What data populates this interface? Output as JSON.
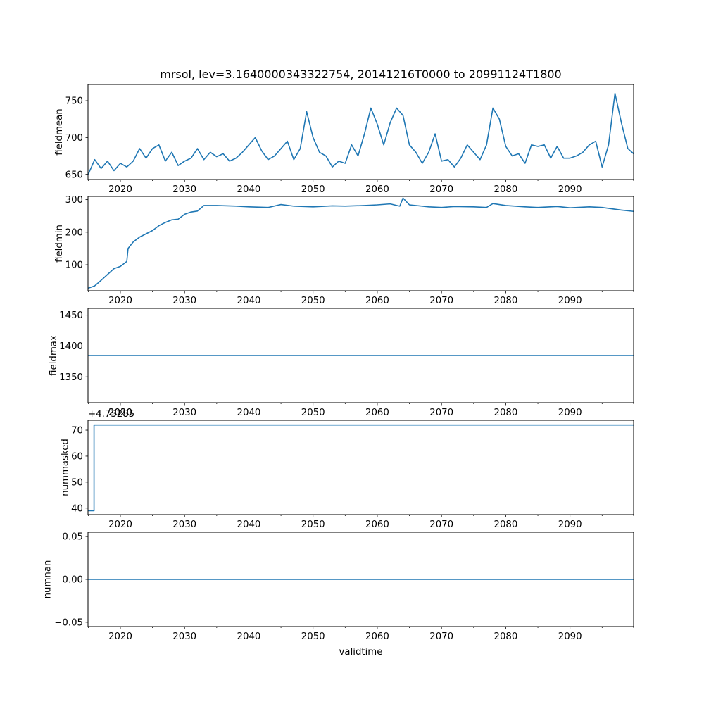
{
  "figure": {
    "title": "mrsol, lev=3.1640000343322754, 20141216T0000 to 20991124T1800",
    "xlabel": "validtime"
  },
  "colors": {
    "line": "#1f77b4",
    "axes": "#000000",
    "background": "#ffffff"
  },
  "chart_data": [
    {
      "type": "line",
      "name": "fieldmean-panel",
      "ylabel": "fieldmean",
      "xlim": [
        2014.96,
        2099.9
      ],
      "ylim": [
        643,
        772
      ],
      "xticks": [
        2020,
        2030,
        2040,
        2050,
        2060,
        2070,
        2080,
        2090
      ],
      "xticklabels": [
        "2020",
        "2030",
        "2040",
        "2050",
        "2060",
        "2070",
        "2080",
        "2090"
      ],
      "yticks": [
        650,
        700,
        750
      ],
      "yticklabels": [
        "650",
        "700",
        "750"
      ],
      "offset_label": "",
      "series": [
        {
          "name": "fieldmean",
          "x": [
            2015.0,
            2016.0,
            2017.0,
            2018.0,
            2019.0,
            2020.0,
            2021.0,
            2022.0,
            2023.0,
            2024.0,
            2025.0,
            2026.0,
            2027.0,
            2028.0,
            2029.0,
            2030.0,
            2031.0,
            2032.0,
            2033.0,
            2034.0,
            2035.0,
            2036.0,
            2037.0,
            2038.0,
            2039.0,
            2040.0,
            2041.0,
            2042.0,
            2043.0,
            2044.0,
            2045.0,
            2046.0,
            2047.0,
            2048.0,
            2049.0,
            2050.0,
            2051.0,
            2052.0,
            2053.0,
            2054.0,
            2055.0,
            2056.0,
            2057.0,
            2058.0,
            2059.0,
            2060.0,
            2061.0,
            2062.0,
            2063.0,
            2064.0,
            2065.0,
            2066.0,
            2067.0,
            2068.0,
            2069.0,
            2070.0,
            2071.0,
            2072.0,
            2073.0,
            2074.0,
            2075.0,
            2076.0,
            2077.0,
            2078.0,
            2079.0,
            2080.0,
            2081.0,
            2082.0,
            2083.0,
            2084.0,
            2085.0,
            2086.0,
            2087.0,
            2088.0,
            2089.0,
            2090.0,
            2091.0,
            2092.0,
            2093.0,
            2094.0,
            2095.0,
            2096.0,
            2097.0,
            2098.0,
            2099.0,
            2099.9
          ],
          "y": [
            650,
            670,
            658,
            668,
            655,
            665,
            660,
            668,
            685,
            672,
            685,
            690,
            668,
            680,
            662,
            668,
            672,
            685,
            670,
            680,
            674,
            678,
            668,
            672,
            680,
            690,
            700,
            682,
            670,
            675,
            685,
            695,
            670,
            685,
            735,
            700,
            680,
            675,
            660,
            668,
            665,
            690,
            675,
            705,
            740,
            718,
            690,
            720,
            740,
            730,
            690,
            680,
            665,
            680,
            705,
            668,
            670,
            660,
            672,
            690,
            680,
            670,
            690,
            740,
            725,
            688,
            675,
            678,
            665,
            690,
            688,
            690,
            672,
            688,
            672,
            672,
            675,
            680,
            690,
            695,
            660,
            690,
            760,
            720,
            685,
            678
          ]
        }
      ]
    },
    {
      "type": "line",
      "name": "fieldmin-panel",
      "ylabel": "fieldmin",
      "xlim": [
        2014.96,
        2099.9
      ],
      "ylim": [
        20,
        310
      ],
      "xticks": [
        2020,
        2030,
        2040,
        2050,
        2060,
        2070,
        2080,
        2090
      ],
      "xticklabels": [
        "2020",
        "2030",
        "2040",
        "2050",
        "2060",
        "2070",
        "2080",
        "2090"
      ],
      "yticks": [
        100,
        200,
        300
      ],
      "yticklabels": [
        "100",
        "200",
        "300"
      ],
      "offset_label": "",
      "series": [
        {
          "name": "fieldmin",
          "x": [
            2015.0,
            2016.0,
            2017.0,
            2018.0,
            2019.0,
            2020.0,
            2021.0,
            2021.2,
            2022.0,
            2023.0,
            2024.0,
            2025.0,
            2026.0,
            2027.0,
            2028.0,
            2029.0,
            2030.0,
            2031.0,
            2032.0,
            2033.0,
            2035.0,
            2038.0,
            2040.0,
            2043.0,
            2045.0,
            2047.0,
            2050.0,
            2053.0,
            2055.0,
            2058.0,
            2060.0,
            2062.0,
            2063.5,
            2064.0,
            2065.0,
            2068.0,
            2070.0,
            2072.0,
            2075.0,
            2077.0,
            2078.0,
            2080.0,
            2083.0,
            2085.0,
            2088.0,
            2090.0,
            2093.0,
            2095.0,
            2098.0,
            2099.9
          ],
          "y": [
            28,
            35,
            52,
            70,
            88,
            95,
            110,
            150,
            170,
            185,
            195,
            205,
            220,
            230,
            238,
            240,
            255,
            262,
            265,
            282,
            282,
            280,
            278,
            276,
            285,
            280,
            278,
            281,
            280,
            282,
            284,
            287,
            280,
            305,
            284,
            278,
            276,
            279,
            278,
            276,
            288,
            282,
            278,
            276,
            279,
            275,
            278,
            276,
            268,
            264
          ]
        }
      ]
    },
    {
      "type": "line",
      "name": "fieldmax-panel",
      "ylabel": "fieldmax",
      "xlim": [
        2014.96,
        2099.9
      ],
      "ylim": [
        1308,
        1461
      ],
      "xticks": [
        2020,
        2030,
        2040,
        2050,
        2060,
        2070,
        2080,
        2090
      ],
      "xticklabels": [
        "2020",
        "2030",
        "2040",
        "2050",
        "2060",
        "2070",
        "2080",
        "2090"
      ],
      "yticks": [
        1350,
        1400,
        1450
      ],
      "yticklabels": [
        "1350",
        "1400",
        "1450"
      ],
      "offset_label": "",
      "series": [
        {
          "name": "fieldmax",
          "x": [
            2014.96,
            2099.9
          ],
          "y": [
            1384.5,
            1384.5
          ]
        }
      ]
    },
    {
      "type": "line",
      "name": "nummasked-panel",
      "ylabel": "nummasked",
      "xlim": [
        2014.96,
        2099.9
      ],
      "ylim": [
        37.5,
        73.8
      ],
      "xticks": [
        2020,
        2030,
        2040,
        2050,
        2060,
        2070,
        2080,
        2090
      ],
      "xticklabels": [
        "2020",
        "2030",
        "2040",
        "2050",
        "2060",
        "2070",
        "2080",
        "2090"
      ],
      "yticks": [
        40,
        50,
        60,
        70
      ],
      "yticklabels": [
        "40",
        "50",
        "60",
        "70"
      ],
      "offset_label": "+4.73285",
      "overlapping_tick": "2020",
      "series": [
        {
          "name": "nummasked",
          "x": [
            2014.96,
            2015.9,
            2015.9,
            2099.9
          ],
          "y": [
            39,
            39,
            72,
            72
          ]
        }
      ]
    },
    {
      "type": "line",
      "name": "numnan-panel",
      "ylabel": "numnan",
      "xlim": [
        2014.96,
        2099.9
      ],
      "ylim": [
        -0.055,
        0.055
      ],
      "xticks": [
        2020,
        2030,
        2040,
        2050,
        2060,
        2070,
        2080,
        2090
      ],
      "xticklabels": [
        "2020",
        "2030",
        "2040",
        "2050",
        "2060",
        "2070",
        "2080",
        "2090"
      ],
      "yticks": [
        -0.05,
        0.0,
        0.05
      ],
      "yticklabels": [
        "−0.05",
        "0.00",
        "0.05"
      ],
      "offset_label": "",
      "series": [
        {
          "name": "numnan",
          "x": [
            2014.96,
            2099.9
          ],
          "y": [
            0,
            0
          ]
        }
      ]
    }
  ]
}
